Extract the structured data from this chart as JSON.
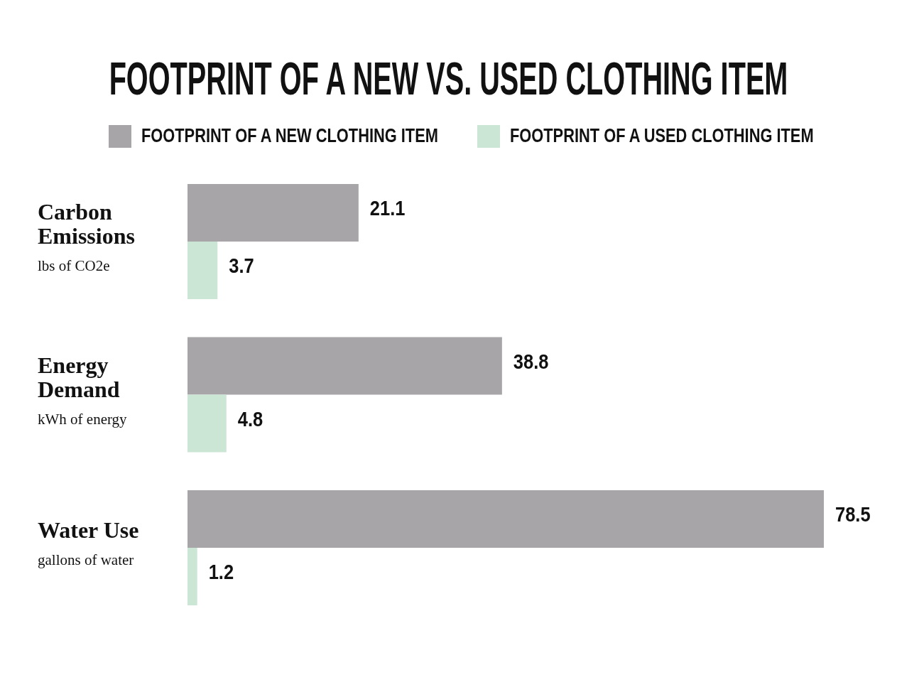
{
  "chart_data": {
    "type": "bar",
    "orientation": "horizontal",
    "title": "FOOTPRINT OF A NEW VS. USED CLOTHING ITEM",
    "categories": [
      "Carbon\nEmissions\nlbs of CO2e",
      "Energy\nDemand\nkWh of energy",
      "Water Use\ngallons of water"
    ],
    "series": [
      {
        "name": "FOOTPRINT OF A NEW CLOTHING ITEM",
        "color": "#a7a5a8",
        "values": [
          21.1,
          38.8,
          78.5
        ]
      },
      {
        "name": "FOOTPRINT OF A USED CLOTHING ITEM",
        "color": "#cce6d6",
        "values": [
          3.7,
          4.8,
          1.2
        ]
      }
    ],
    "data_labels": true,
    "legend": "top"
  }
}
